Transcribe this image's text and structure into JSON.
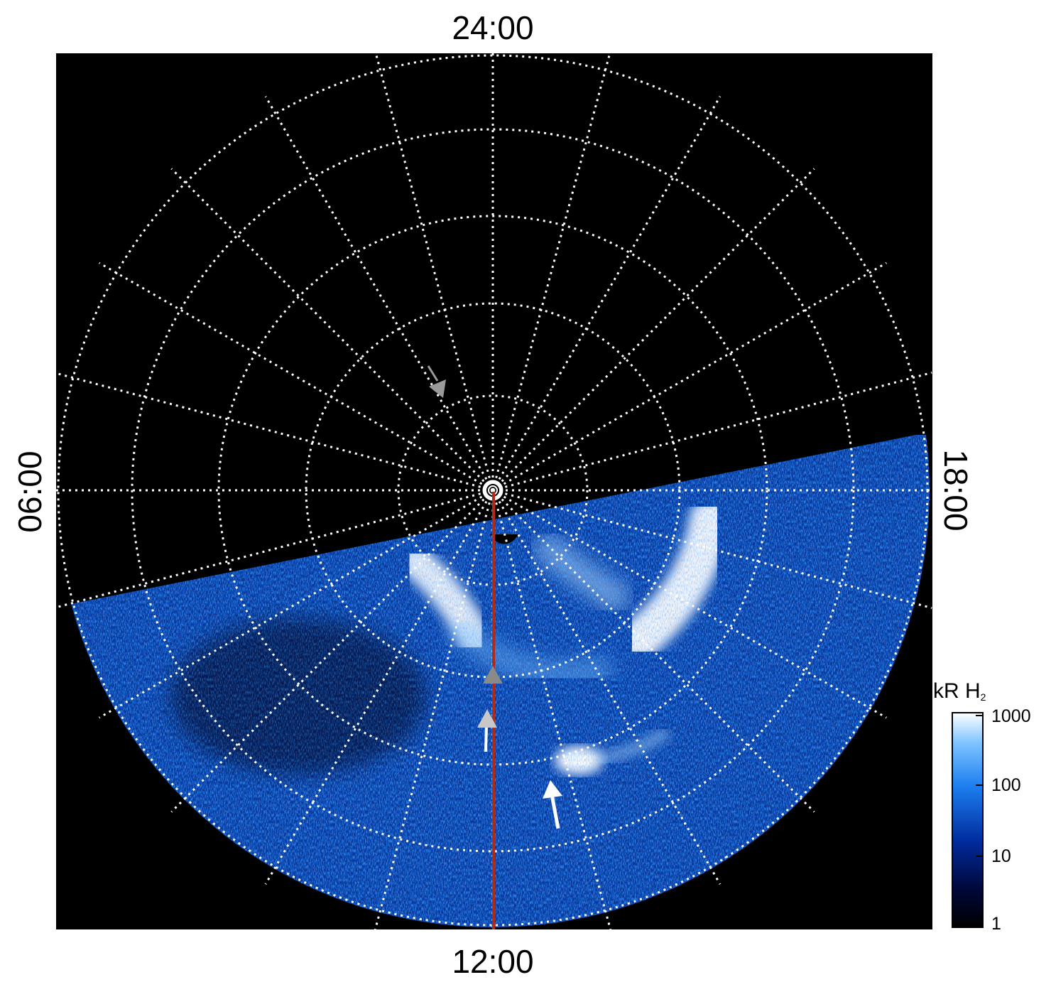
{
  "figure": {
    "time_labels": {
      "top": "24:00",
      "bottom": "12:00",
      "left": "06:00",
      "right": "18:00"
    },
    "colorbar": {
      "unit": "kR H",
      "subscript": "2",
      "ticks": [
        "1000",
        "100",
        "10",
        "1"
      ],
      "colors": [
        "#000000",
        "#00083a",
        "#002b9e",
        "#1d7ff0",
        "#7fc4ff",
        "#ffffff"
      ]
    },
    "colors": {
      "background": "#000000",
      "grid": "#ffffff",
      "meridian_line": "#b02a1a",
      "marker_grey": "#8a8a8a",
      "marker_white": "#ffffff"
    },
    "icons": [
      "arrow-icon",
      "triangle-marker-icon",
      "pole-marker-icon"
    ]
  }
}
